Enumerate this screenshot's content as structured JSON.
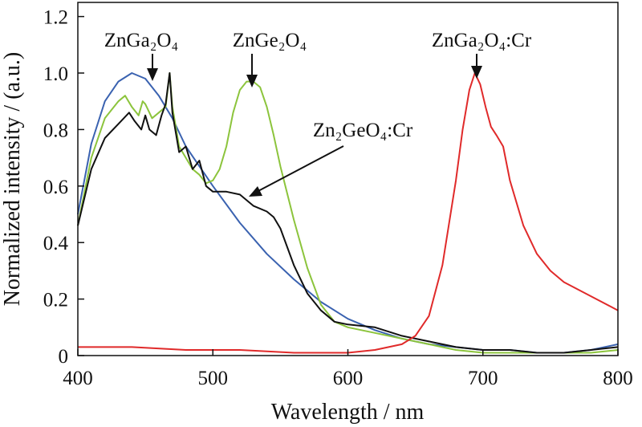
{
  "chart_data": {
    "type": "line",
    "xlabel": "Wavelength / nm",
    "ylabel": "Normalized intensity / (a.u.)",
    "xlim": [
      400,
      800
    ],
    "ylim": [
      0,
      1.25
    ],
    "x_ticks": [
      "400",
      "500",
      "600",
      "700",
      "800"
    ],
    "y_ticks": [
      "0",
      "0.2",
      "0.4",
      "0.6",
      "0.8",
      "1.0",
      "1.2"
    ],
    "grid": false,
    "legend": "none",
    "annotations": [
      {
        "label": "ZnGa₂O₄",
        "points_to": [
          440,
          1.0
        ]
      },
      {
        "label": "ZnGe₂O₄",
        "points_to": [
          530,
          0.97
        ]
      },
      {
        "label": "Zn₂GeO₄:Cr",
        "points_to": [
          530,
          0.56
        ]
      },
      {
        "label": "ZnGa₂O₄:Cr",
        "points_to": [
          694,
          1.0
        ]
      }
    ],
    "series": [
      {
        "color": "#3a62b0",
        "x": [
          400,
          410,
          420,
          430,
          440,
          450,
          460,
          470,
          480,
          500,
          520,
          540,
          560,
          580,
          600,
          620,
          640,
          660,
          680,
          700,
          720,
          740,
          760,
          780,
          800
        ],
        "y": [
          0.5,
          0.75,
          0.9,
          0.97,
          1.0,
          0.98,
          0.92,
          0.84,
          0.74,
          0.6,
          0.47,
          0.36,
          0.27,
          0.19,
          0.13,
          0.09,
          0.06,
          0.04,
          0.03,
          0.02,
          0.02,
          0.01,
          0.01,
          0.02,
          0.04
        ]
      },
      {
        "color": "#8cc43c",
        "x": [
          400,
          410,
          420,
          430,
          435,
          440,
          445,
          448,
          450,
          455,
          460,
          465,
          468,
          470,
          475,
          480,
          485,
          490,
          495,
          500,
          505,
          510,
          515,
          520,
          525,
          530,
          535,
          540,
          545,
          550,
          560,
          570,
          580,
          590,
          600,
          620,
          640,
          660,
          680,
          700,
          720,
          740,
          760,
          780,
          800
        ],
        "y": [
          0.46,
          0.7,
          0.84,
          0.9,
          0.92,
          0.88,
          0.85,
          0.9,
          0.89,
          0.84,
          0.86,
          0.88,
          1.0,
          0.88,
          0.74,
          0.7,
          0.66,
          0.64,
          0.61,
          0.62,
          0.66,
          0.74,
          0.86,
          0.94,
          0.97,
          0.97,
          0.95,
          0.88,
          0.78,
          0.67,
          0.48,
          0.31,
          0.18,
          0.12,
          0.1,
          0.08,
          0.06,
          0.04,
          0.02,
          0.01,
          0.01,
          0.01,
          0.01,
          0.01,
          0.02
        ]
      },
      {
        "color": "#111111",
        "x": [
          400,
          410,
          420,
          430,
          438,
          442,
          447,
          450,
          453,
          458,
          462,
          465,
          468,
          470,
          475,
          480,
          485,
          490,
          495,
          500,
          510,
          520,
          530,
          540,
          545,
          550,
          560,
          570,
          580,
          590,
          600,
          620,
          640,
          660,
          680,
          700,
          720,
          740,
          760,
          780,
          800
        ],
        "y": [
          0.46,
          0.66,
          0.77,
          0.82,
          0.86,
          0.83,
          0.8,
          0.85,
          0.8,
          0.78,
          0.85,
          0.89,
          1.0,
          0.86,
          0.72,
          0.74,
          0.66,
          0.69,
          0.6,
          0.58,
          0.58,
          0.57,
          0.53,
          0.51,
          0.49,
          0.45,
          0.32,
          0.22,
          0.16,
          0.12,
          0.11,
          0.1,
          0.07,
          0.05,
          0.03,
          0.02,
          0.02,
          0.01,
          0.01,
          0.02,
          0.03
        ]
      },
      {
        "color": "#e02a2a",
        "x": [
          400,
          440,
          480,
          520,
          560,
          600,
          620,
          640,
          650,
          660,
          670,
          680,
          685,
          690,
          694,
          698,
          702,
          706,
          710,
          715,
          720,
          730,
          740,
          750,
          760,
          780,
          800
        ],
        "y": [
          0.03,
          0.03,
          0.02,
          0.02,
          0.01,
          0.01,
          0.02,
          0.04,
          0.07,
          0.14,
          0.32,
          0.62,
          0.8,
          0.94,
          1.0,
          0.96,
          0.88,
          0.81,
          0.78,
          0.74,
          0.62,
          0.46,
          0.36,
          0.3,
          0.26,
          0.21,
          0.16
        ]
      }
    ]
  }
}
